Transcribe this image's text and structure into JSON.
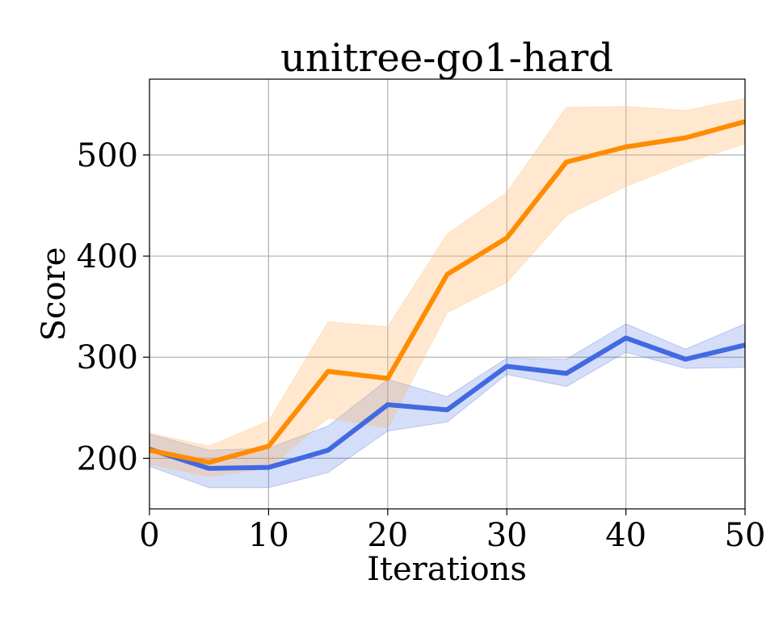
{
  "chart_data": {
    "type": "line",
    "title": "unitree-go1-hard",
    "xlabel": "Iterations",
    "ylabel": "Score",
    "xlim": [
      0,
      50
    ],
    "ylim": [
      150,
      575
    ],
    "xticks": [
      0,
      10,
      20,
      30,
      40,
      50
    ],
    "yticks": [
      200,
      300,
      400,
      500
    ],
    "xtick_labels": [
      "0",
      "10",
      "20",
      "30",
      "40",
      "50"
    ],
    "ytick_labels": [
      "200",
      "300",
      "400",
      "500"
    ],
    "grid": true,
    "legend": "none",
    "x": [
      0,
      5,
      10,
      15,
      20,
      25,
      30,
      35,
      40,
      45,
      50
    ],
    "series": [
      {
        "color": "#4169e1",
        "fill_color": "#4169e1",
        "values": [
          209,
          190,
          191,
          208,
          253,
          248,
          291,
          284,
          319,
          298,
          312
        ],
        "lower": [
          192,
          171,
          171,
          186,
          227,
          236,
          283,
          271,
          305,
          289,
          290
        ],
        "upper": [
          224,
          208,
          210,
          232,
          278,
          261,
          299,
          298,
          333,
          308,
          333
        ]
      },
      {
        "color": "#ff8c00",
        "fill_color": "#ffb86b",
        "values": [
          208,
          196,
          212,
          286,
          279,
          382,
          418,
          493,
          508,
          517,
          533
        ],
        "lower": [
          194,
          182,
          190,
          240,
          230,
          344,
          374,
          440,
          469,
          492,
          511
        ],
        "upper": [
          225,
          212,
          237,
          335,
          330,
          422,
          463,
          547,
          548,
          544,
          556
        ]
      }
    ]
  }
}
